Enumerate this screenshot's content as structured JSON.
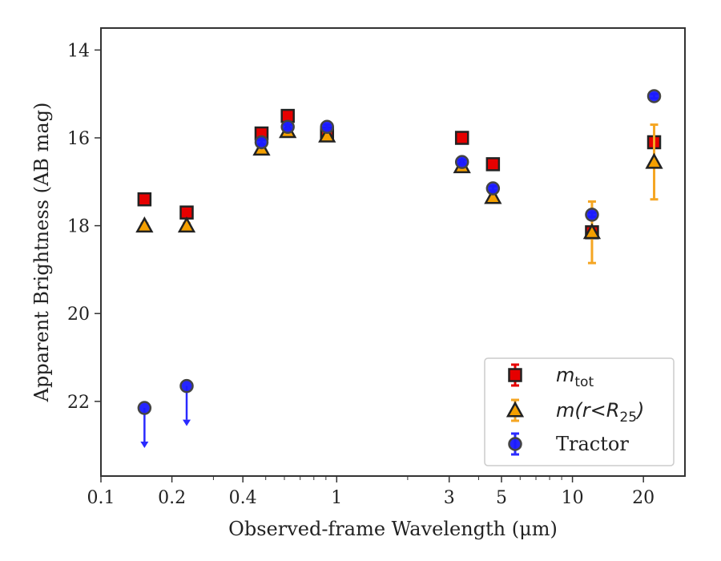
{
  "chart_data": {
    "type": "scatter",
    "xlabel": "Observed-frame Wavelength (μm)",
    "ylabel": "Apparent Brightness (AB mag)",
    "xscale": "log",
    "xlim": [
      0.1,
      30
    ],
    "ylim": [
      23.7,
      13.5
    ],
    "y_inverted": true,
    "grid": false,
    "legend_position": "lower-right",
    "x_ticks": [
      0.1,
      0.2,
      0.4,
      1,
      3,
      5,
      10,
      20
    ],
    "x_tick_labels": [
      "0.1",
      "0.2",
      "0.4",
      "1",
      "3",
      "5",
      "10",
      "20"
    ],
    "y_ticks": [
      14,
      16,
      18,
      20,
      22
    ],
    "y_tick_labels": [
      "14",
      "16",
      "18",
      "20",
      "22"
    ],
    "series": [
      {
        "name": "m_tot",
        "label_main": "m",
        "label_sub": "tot",
        "marker": "square",
        "color": "#e60000",
        "errcolor": "#e60000",
        "points": [
          {
            "x": 0.153,
            "y": 17.4,
            "err": 0.07
          },
          {
            "x": 0.231,
            "y": 17.7,
            "err": 0.08
          },
          {
            "x": 0.48,
            "y": 15.9,
            "err": 0.05
          },
          {
            "x": 0.62,
            "y": 15.5,
            "err": 0.05
          },
          {
            "x": 0.91,
            "y": 15.9,
            "err": 0.05
          },
          {
            "x": 3.4,
            "y": 16.0,
            "err": 0.05
          },
          {
            "x": 4.6,
            "y": 16.6,
            "err": 0.05
          },
          {
            "x": 12.1,
            "y": 18.15,
            "err": 0.08
          },
          {
            "x": 22.2,
            "y": 16.1,
            "err": 0.1
          }
        ]
      },
      {
        "name": "m(r<R25)",
        "label_main": "m(r<R",
        "label_sub": "25",
        "label_end": ")",
        "marker": "triangle",
        "color": "#f5a000",
        "errcolor": "#f5a623",
        "points": [
          {
            "x": 0.153,
            "y": 18.0,
            "err": 0.05
          },
          {
            "x": 0.231,
            "y": 18.0,
            "err": 0.05
          },
          {
            "x": 0.48,
            "y": 16.25,
            "err": 0.05
          },
          {
            "x": 0.62,
            "y": 15.85,
            "err": 0.05
          },
          {
            "x": 0.91,
            "y": 15.95,
            "err": 0.05
          },
          {
            "x": 3.4,
            "y": 16.65,
            "err": 0.05
          },
          {
            "x": 4.6,
            "y": 17.35,
            "err": 0.05
          },
          {
            "x": 12.1,
            "y": 18.15,
            "err": 0.7
          },
          {
            "x": 22.2,
            "y": 16.55,
            "err": 0.85
          }
        ]
      },
      {
        "name": "Tractor",
        "marker": "circle",
        "color": "#1a1aff",
        "errcolor": "#2a2aff",
        "points": [
          {
            "x": 0.153,
            "y": 22.15,
            "upper_limit": true
          },
          {
            "x": 0.231,
            "y": 21.65,
            "upper_limit": true
          },
          {
            "x": 0.48,
            "y": 16.1,
            "err": 0.05
          },
          {
            "x": 0.62,
            "y": 15.75,
            "err": 0.05
          },
          {
            "x": 0.91,
            "y": 15.75,
            "err": 0.05
          },
          {
            "x": 3.4,
            "y": 16.55,
            "err": 0.05
          },
          {
            "x": 4.6,
            "y": 17.15,
            "err": 0.05
          },
          {
            "x": 12.1,
            "y": 17.75,
            "err": 0.05
          },
          {
            "x": 22.2,
            "y": 15.05,
            "err": 0.05
          }
        ]
      }
    ]
  }
}
